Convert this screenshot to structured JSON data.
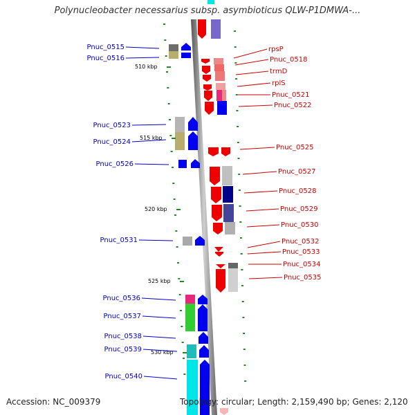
{
  "title": "Polynucleobacter necessarius subsp. asymbioticus QLW-P1DMWA-...",
  "footer": {
    "accession": "Accession: NC_009379",
    "topology": "Topology: circular; Length: 2,159,490 bp; Genes: 2,120"
  },
  "ruler": [
    {
      "label": "510 kbp",
      "pos": 510
    },
    {
      "label": "515 kbp",
      "pos": 515
    },
    {
      "label": "520 kbp",
      "pos": 520
    },
    {
      "label": "525 kbp",
      "pos": 525
    },
    {
      "label": "530 kbp",
      "pos": 530
    }
  ],
  "left_genes": [
    {
      "label": "Pnuc_0515",
      "color": "#6d6d6d",
      "strand": "+"
    },
    {
      "label": "Pnuc_0516",
      "color": "#b8ad6d",
      "strand": "+"
    },
    {
      "label": "Pnuc_0523",
      "color": "#b5b5b5",
      "strand": "+"
    },
    {
      "label": "Pnuc_0524",
      "color": "#b8ad6d",
      "strand": "+"
    },
    {
      "label": "Pnuc_0526",
      "color": "#0000ee",
      "strand": "+"
    },
    {
      "label": "Pnuc_0531",
      "color": "#a9a9a9",
      "strand": "+"
    },
    {
      "label": "Pnuc_0536",
      "color": "#e8287a",
      "strand": "+"
    },
    {
      "label": "Pnuc_0537",
      "color": "#33cc33",
      "strand": "+"
    },
    {
      "label": "Pnuc_0538",
      "color": "#0000ee",
      "strand": "+"
    },
    {
      "label": "Pnuc_0539",
      "color": "#22bbbb",
      "strand": "+"
    },
    {
      "label": "Pnuc_0540",
      "color": "#00e5e5",
      "strand": "+"
    }
  ],
  "right_genes": [
    {
      "label": "rpsP",
      "color": "#ee8888",
      "strand": "-"
    },
    {
      "label": "Pnuc_0518",
      "color": "#ee6666",
      "strand": "-"
    },
    {
      "label": "trmD",
      "color": "#ee7777",
      "strand": "-"
    },
    {
      "label": "rplS",
      "color": "#f0a0a0",
      "strand": "-"
    },
    {
      "label": "Pnuc_0521",
      "color": "#e8287a",
      "strand": "-"
    },
    {
      "label": "Pnuc_0522",
      "color": "#0000ee",
      "strand": "-"
    },
    {
      "label": "Pnuc_0525",
      "color": "#ee0000",
      "strand": "-"
    },
    {
      "label": "Pnuc_0527",
      "color": "#c0c0c0",
      "strand": "-"
    },
    {
      "label": "Pnuc_0528",
      "color": "#000088",
      "strand": "-"
    },
    {
      "label": "Pnuc_0529",
      "color": "#444499",
      "strand": "-"
    },
    {
      "label": "Pnuc_0530",
      "color": "#b0b0b0",
      "strand": "-"
    },
    {
      "label": "Pnuc_0532",
      "color": "#ee0000",
      "strand": "-"
    },
    {
      "label": "Pnuc_0533",
      "color": "#ee0000",
      "strand": "-"
    },
    {
      "label": "Pnuc_0534",
      "color": "#888888",
      "strand": "-"
    },
    {
      "label": "Pnuc_0535",
      "color": "#d0d0d0",
      "strand": "-"
    }
  ]
}
